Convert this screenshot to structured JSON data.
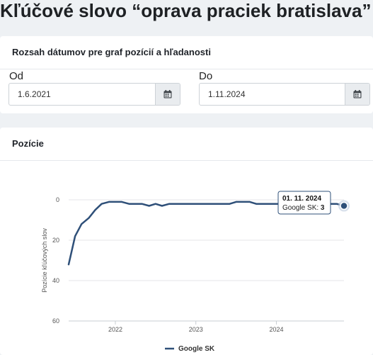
{
  "page": {
    "title": "Kľúčové slovo “oprava praciek bratislava”"
  },
  "date_range": {
    "title": "Rozsah dátumov pre graf pozícií a hľadanosti",
    "from": {
      "label": "Od",
      "value": "1.6.2021",
      "icon": "calendar-icon"
    },
    "to": {
      "label": "Do",
      "value": "1.11.2024",
      "icon": "calendar-icon"
    }
  },
  "positions_card": {
    "title": "Pozície"
  },
  "chart_data": {
    "type": "line",
    "ylabel": "Pozície kľúčových slov",
    "xlabel": "",
    "y_reversed": true,
    "ylim": [
      0,
      60
    ],
    "yticks": [
      "0",
      "20",
      "40",
      "60"
    ],
    "xticks": [
      "2022",
      "2023",
      "2024"
    ],
    "x_tick_values": [
      2022.0,
      2023.0,
      2024.0
    ],
    "xlim": [
      2021.42,
      2024.84
    ],
    "grid": "horizontal",
    "legend_position": "bottom",
    "series": [
      {
        "name": "Google SK",
        "color": "#2f5079",
        "x": [
          2021.42,
          2021.5,
          2021.58,
          2021.67,
          2021.75,
          2021.83,
          2021.92,
          2022.0,
          2022.08,
          2022.17,
          2022.25,
          2022.33,
          2022.42,
          2022.5,
          2022.58,
          2022.67,
          2022.75,
          2022.83,
          2022.92,
          2023.0,
          2023.08,
          2023.17,
          2023.25,
          2023.33,
          2023.42,
          2023.5,
          2023.58,
          2023.67,
          2023.75,
          2023.83,
          2023.92,
          2024.0,
          2024.08,
          2024.17,
          2024.25,
          2024.33,
          2024.42,
          2024.5,
          2024.58,
          2024.67,
          2024.75,
          2024.84
        ],
        "values": [
          32,
          18,
          12,
          9,
          5,
          2,
          1,
          1,
          1,
          2,
          2,
          2,
          3,
          2,
          3,
          2,
          2,
          2,
          2,
          2,
          2,
          2,
          2,
          2,
          2,
          1,
          1,
          1,
          2,
          2,
          2,
          2,
          2,
          2,
          2,
          2,
          2,
          2,
          2,
          2,
          2,
          3
        ]
      }
    ],
    "tooltip": {
      "date": "01. 11. 2024",
      "series": "Google SK",
      "value": "3"
    }
  }
}
